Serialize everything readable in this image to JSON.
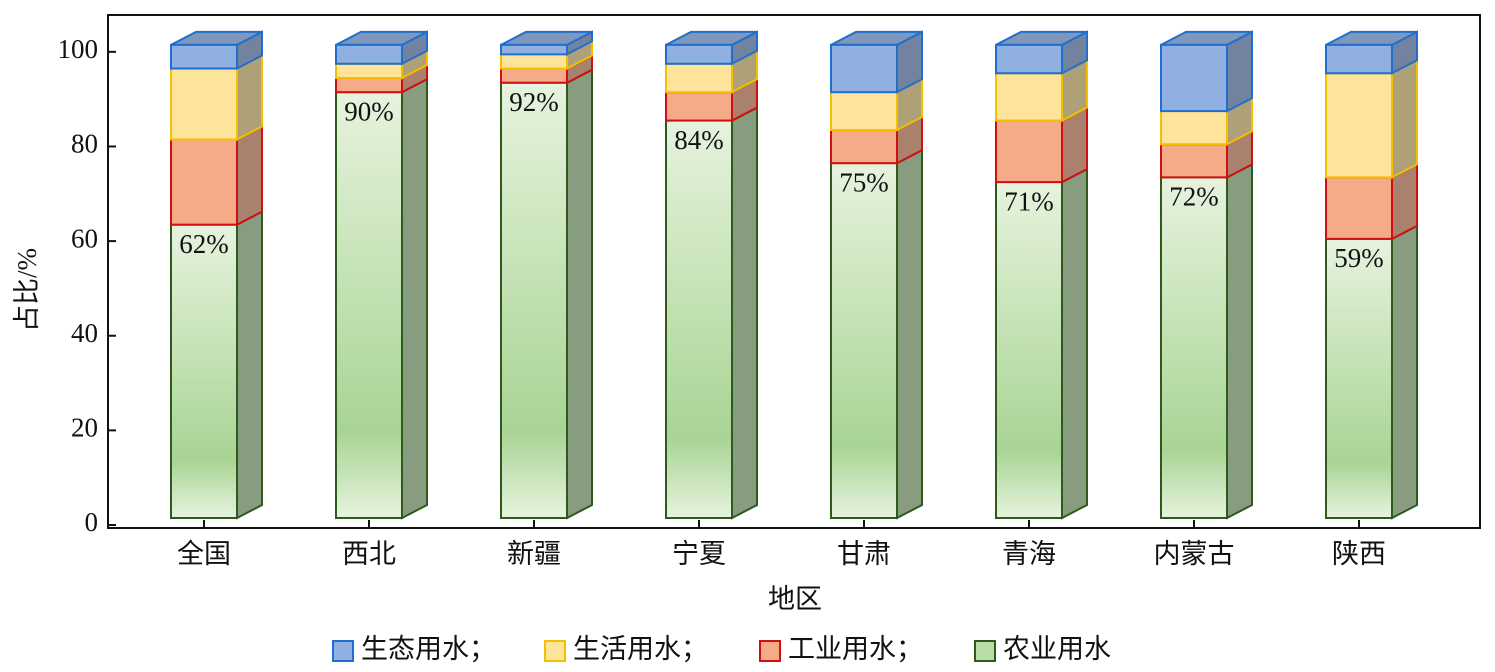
{
  "chart_data": {
    "type": "stacked_bar_3d",
    "x_label": "地区",
    "y_label": "占比/%",
    "categories": [
      "全国",
      "西北",
      "新疆",
      "宁夏",
      "甘肃",
      "青海",
      "内蒙古",
      "陕西"
    ],
    "series": [
      {
        "name": "生态用水；",
        "color": "#8fb0e0",
        "edge": "#1f6fd0",
        "values": [
          5,
          4,
          2,
          4,
          10,
          6,
          14,
          6
        ]
      },
      {
        "name": "生活用水；",
        "color": "#fde49a",
        "edge": "#f5c000",
        "values": [
          15,
          3,
          3,
          6,
          8,
          10,
          7,
          22
        ]
      },
      {
        "name": "工业用水；",
        "color": "#f5ab88",
        "edge": "#d01010",
        "values": [
          18,
          3,
          3,
          6,
          7,
          13,
          7,
          13
        ]
      },
      {
        "name": "农业用水",
        "color": "#b9dca8",
        "edge": "#2e5a1e",
        "values": [
          62,
          90,
          92,
          84,
          75,
          71,
          72,
          59
        ],
        "value_labels": [
          "62%",
          "90%",
          "92%",
          "84%",
          "75%",
          "71%",
          "72%",
          "59%"
        ]
      }
    ],
    "ylim": [
      0,
      108
    ],
    "yticks": [
      0,
      20,
      40,
      60,
      80,
      100
    ]
  }
}
